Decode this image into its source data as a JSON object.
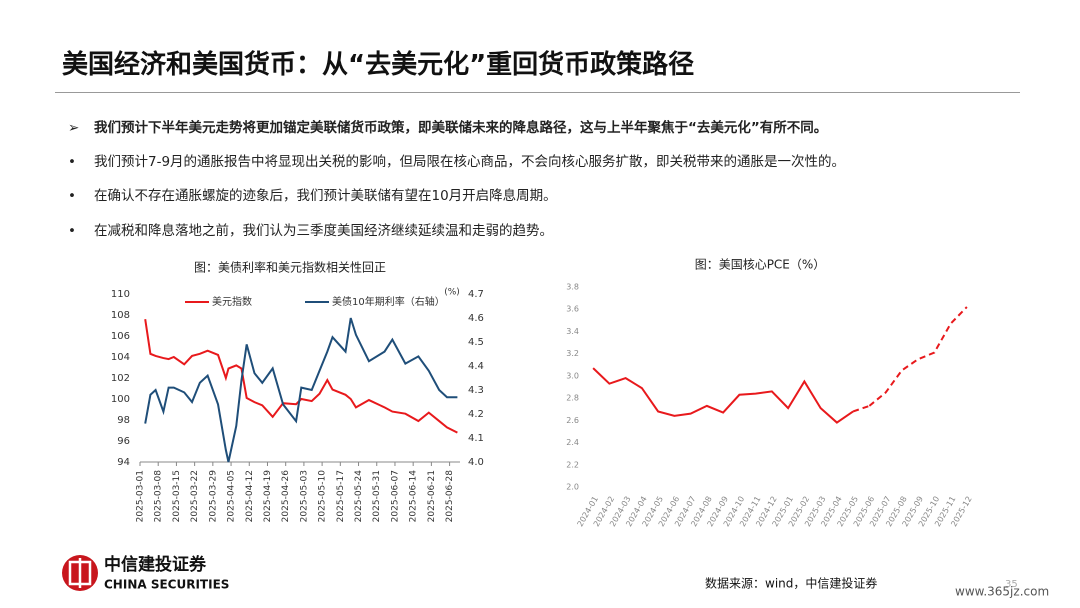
{
  "header": {
    "title": "美国经济和美国货币：从“去美元化”重回货币政策路径"
  },
  "bullets": [
    "我们预计下半年美元走势将更加锚定美联储货币政策，即美联储未来的降息路径，这与上半年聚焦于“去美元化”有所不同。",
    "我们预计7-9月的通胀报告中将显现出关税的影响，但局限在核心商品，不会向核心服务扩散，即关税带来的通胀是一次性的。",
    "在确认不存在通胀螺旋的迹象后，我们预计美联储有望在10月开启降息周期。",
    "在减税和降息落地之前，我们认为三季度美国经济继续延续温和走弱的趋势。"
  ],
  "chart_data": [
    {
      "type": "line",
      "title": "图：美债利率和美元指数相关性回正",
      "y2label": "(%)",
      "x": [
        "2025-03-03",
        "2025-03-05",
        "2025-03-07",
        "2025-03-10",
        "2025-03-12",
        "2025-03-14",
        "2025-03-18",
        "2025-03-21",
        "2025-03-24",
        "2025-03-27",
        "2025-03-31",
        "2025-04-03",
        "2025-04-04",
        "2025-04-07",
        "2025-04-09",
        "2025-04-11",
        "2025-04-14",
        "2025-04-17",
        "2025-04-21",
        "2025-04-25",
        "2025-04-30",
        "2025-05-02",
        "2025-05-06",
        "2025-05-09",
        "2025-05-12",
        "2025-05-14",
        "2025-05-19",
        "2025-05-21",
        "2025-05-23",
        "2025-05-28",
        "2025-06-03",
        "2025-06-06",
        "2025-06-11",
        "2025-06-16",
        "2025-06-20",
        "2025-06-24",
        "2025-06-27",
        "2025-07-01"
      ],
      "series": [
        {
          "name": "美元指数",
          "color": "#e8191c",
          "values": [
            107.6,
            104.3,
            104.1,
            103.9,
            103.8,
            104.0,
            103.3,
            104.1,
            104.3,
            104.6,
            104.2,
            102.0,
            102.9,
            103.2,
            102.9,
            100.1,
            99.7,
            99.4,
            98.3,
            99.6,
            99.5,
            100.0,
            99.8,
            100.5,
            101.8,
            100.9,
            100.4,
            100.0,
            99.2,
            99.9,
            99.2,
            98.8,
            98.6,
            97.9,
            98.7,
            97.9,
            97.3,
            96.8
          ]
        },
        {
          "name": "美债10年期利率（右轴）",
          "color": "#1f4e79",
          "axis": "y2",
          "values": [
            4.16,
            4.28,
            4.3,
            4.21,
            4.31,
            4.31,
            4.29,
            4.25,
            4.33,
            4.36,
            4.24,
            4.05,
            4.0,
            4.15,
            4.34,
            4.49,
            4.37,
            4.33,
            4.39,
            4.24,
            4.17,
            4.31,
            4.3,
            4.38,
            4.46,
            4.52,
            4.46,
            4.6,
            4.53,
            4.42,
            4.46,
            4.51,
            4.41,
            4.44,
            4.38,
            4.3,
            4.27,
            4.27
          ]
        }
      ],
      "xlim": [
        "2025-03-01",
        "2025-07-02"
      ],
      "xticks": [
        "2025-03-01",
        "2025-03-08",
        "2025-03-15",
        "2025-03-22",
        "2025-03-29",
        "2025-04-05",
        "2025-04-12",
        "2025-04-19",
        "2025-04-26",
        "2025-05-03",
        "2025-05-10",
        "2025-05-17",
        "2025-05-24",
        "2025-05-31",
        "2025-06-07",
        "2025-06-14",
        "2025-06-21",
        "2025-06-28"
      ],
      "ylim": [
        94,
        110
      ],
      "yticks": [
        94,
        96,
        98,
        100,
        102,
        104,
        106,
        108,
        110
      ],
      "y2lim": [
        4.0,
        4.7
      ],
      "y2ticks": [
        {
          "value": 4,
          "label": "4.0"
        },
        4.1,
        4.2,
        4.3,
        4.4,
        4.5,
        4.6,
        4.7
      ],
      "legend": "top"
    },
    {
      "type": "line",
      "title": "图：美国核心PCE（%）",
      "categories": [
        "2024-01",
        "2024-02",
        "2024-03",
        "2024-04",
        "2024-05",
        "2024-06",
        "2024-07",
        "2024-08",
        "2024-09",
        "2024-10",
        "2024-11",
        "2024-12",
        "2025-01",
        "2025-02",
        "2025-03",
        "2025-04",
        "2025-05",
        "2025-06",
        "2025-07",
        "2025-08",
        "2025-09",
        "2025-10",
        "2025-11",
        "2025-12"
      ],
      "series": [
        {
          "color": "#e8191c",
          "values": [
            3.07,
            2.93,
            2.98,
            2.89,
            2.68,
            2.64,
            2.66,
            2.73,
            2.67,
            2.83,
            2.84,
            2.86,
            2.71,
            2.95,
            2.71,
            2.58,
            2.68,
            null,
            null,
            null,
            null,
            null,
            null,
            null
          ]
        },
        {
          "color": "#e8191c",
          "dashed": true,
          "values": [
            null,
            null,
            null,
            null,
            null,
            null,
            null,
            null,
            null,
            null,
            null,
            null,
            null,
            null,
            null,
            null,
            null,
            2.73,
            2.85,
            3.05,
            3.15,
            3.21,
            3.47,
            3.62
          ]
        }
      ],
      "ylim": [
        2.0,
        3.8
      ],
      "yticks": [
        {
          "value": 2,
          "label": "2.0"
        },
        2.2,
        2.4,
        2.6,
        2.8,
        {
          "value": 3,
          "label": "3.0"
        },
        3.2,
        3.4,
        3.6,
        3.8
      ]
    }
  ],
  "footer": {
    "logo": "中信建投证券",
    "logo_en": "CHINA SECURITIES",
    "source": "数据来源：wind，中信建投证券",
    "page": "35",
    "watermark": "www.365jz.com"
  }
}
